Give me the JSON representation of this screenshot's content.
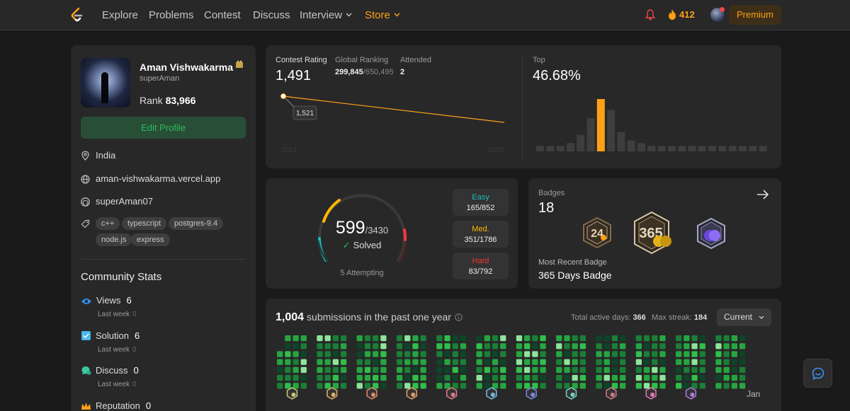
{
  "nav": {
    "links": [
      "Explore",
      "Problems",
      "Contest",
      "Discuss",
      "Interview",
      "Store"
    ],
    "streak_count": "412",
    "premium_label": "Premium"
  },
  "profile": {
    "name": "Aman Vishwakarma",
    "username": "superAman",
    "rank_label": "Rank",
    "rank_value": "83,966",
    "edit_label": "Edit Profile",
    "location": "India",
    "website": "aman-vishwakarma.vercel.app",
    "github": "superAman07",
    "tags": [
      "c++",
      "typescript",
      "postgres-9.4",
      "node.js",
      "express"
    ]
  },
  "community": {
    "title": "Community Stats",
    "stats": [
      {
        "label": "Views",
        "value": "6",
        "sub_label": "Last week",
        "sub_value": "0"
      },
      {
        "label": "Solution",
        "value": "6",
        "sub_label": "Last week",
        "sub_value": "0"
      },
      {
        "label": "Discuss",
        "value": "0",
        "sub_label": "Last week",
        "sub_value": "0"
      },
      {
        "label": "Reputation",
        "value": "0"
      }
    ]
  },
  "contest": {
    "rating_label": "Contest Rating",
    "rating": "1,491",
    "global_label": "Global Ranking",
    "global_rank": "299,845",
    "global_total": "/650,495",
    "attended_label": "Attended",
    "attended": "2",
    "tooltip": "1,521",
    "year_start": "2024",
    "year_end": "2025",
    "top_label": "Top",
    "top_value": "46.68%",
    "histogram": [
      2,
      2,
      2,
      3,
      6,
      12,
      19,
      15,
      7,
      4,
      3,
      2,
      2,
      2,
      2,
      2,
      2,
      2,
      2,
      2,
      2,
      2,
      2,
      2
    ],
    "histogram_highlight": 6
  },
  "solved": {
    "count": "599",
    "total": "/3430",
    "solved_label": "Solved",
    "attempting": "5 Attempting",
    "solved_num": 599,
    "total_num": 3430,
    "difficulties": [
      {
        "name": "Easy",
        "value": "165/852",
        "color": "#1cbaba",
        "solved": 165,
        "total": 852
      },
      {
        "name": "Med.",
        "value": "351/1786",
        "color": "#ffb700",
        "solved": 351,
        "total": 1786
      },
      {
        "name": "Hard",
        "value": "83/792",
        "color": "#f63737",
        "solved": 83,
        "total": 792
      }
    ]
  },
  "badges": {
    "title": "Badges",
    "count": "18",
    "recent_label": "Most Recent Badge",
    "recent_name": "365 Days Badge",
    "badge_icons": [
      "2024-annual-badge",
      "365-days-badge",
      "50-days-badge"
    ]
  },
  "submissions": {
    "count": "1,004",
    "label": "submissions in the past one year",
    "active_days_label": "Total active days:",
    "active_days": "366",
    "max_streak_label": "Max streak:",
    "max_streak": "184",
    "select_value": "Current",
    "month_label_last": "Jan"
  }
}
